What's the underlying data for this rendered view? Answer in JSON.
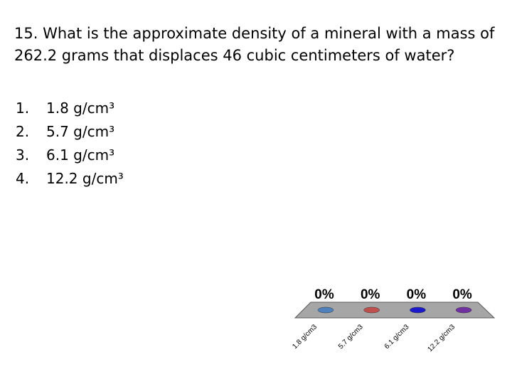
{
  "question": "15. What is the approximate density of a mineral with a mass of 262.2 grams that displaces 46 cubic centimeters of water?",
  "options": [
    {
      "number": "1.",
      "text": "1.8 g/cm³"
    },
    {
      "number": "2.",
      "text": "5.7 g/cm³"
    },
    {
      "number": "3.",
      "text": "6.1 g/cm³"
    },
    {
      "number": "4.",
      "text": "12.2 g/cm³"
    }
  ],
  "chart_data": {
    "type": "bar",
    "categories": [
      "1.8 g/cm3",
      "5.7 g/cm3",
      "6.1 g/cm3",
      "12.2 g/cm3"
    ],
    "values": [
      0,
      0,
      0,
      0
    ],
    "value_labels": [
      "0%",
      "0%",
      "0%",
      "0%"
    ],
    "colors": [
      "#4f81bd",
      "#c0504d",
      "#1a1acc",
      "#7030a0"
    ]
  }
}
